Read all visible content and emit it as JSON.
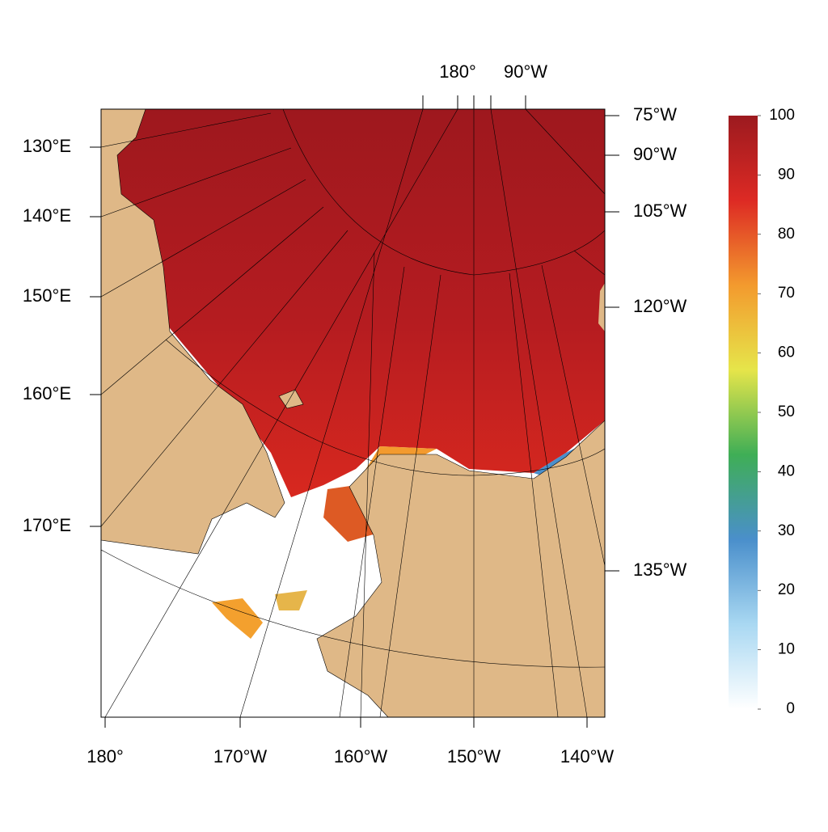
{
  "map": {
    "bottom_labels": [
      "180°",
      "170°W",
      "160°W",
      "150°W",
      "140°W"
    ],
    "top_labels": [
      "180°",
      "90°W"
    ],
    "left_labels": [
      "130°E",
      "140°E",
      "150°E",
      "160°E",
      "170°E"
    ],
    "right_labels": [
      "75°W",
      "90°W",
      "105°W",
      "120°W",
      "135°W"
    ]
  },
  "colorbar": {
    "lim": [
      0,
      100
    ],
    "ticks": [
      0,
      10,
      20,
      30,
      40,
      50,
      60,
      70,
      80,
      90,
      100
    ],
    "colors": [
      "#ffffff",
      "#a9d8f2",
      "#4a8fcb",
      "#3fae56",
      "#e6e54a",
      "#f39a2e",
      "#dd2a24",
      "#9c1a1f"
    ]
  }
}
